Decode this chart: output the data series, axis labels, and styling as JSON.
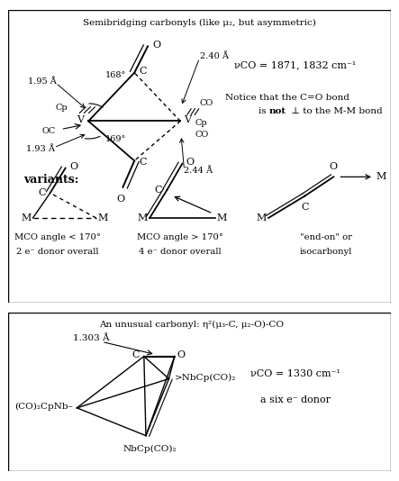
{
  "bg_color": "#ffffff",
  "title1": "Semibridging carbonyls (like μ₂, but asymmetric)",
  "title2": "An unusual carbonyl: η²(μ₃-C, μ₂-O)-CO",
  "vco1": "νCO = 1871, 1832 cm⁻¹",
  "notice1": "Notice that the C=O bond",
  "notice2": "is not ⊥ to the M-M bond",
  "vco2": "νCO = 1330 cm⁻¹",
  "donor2": "a six e⁻ donor",
  "variants_label": "variants:",
  "var1_line1": "MCO angle < 170°",
  "var1_line2": "2 e⁻ donor overall",
  "var2_line1": "MCO angle > 170°",
  "var2_line2": "4 e⁻ donor overall",
  "var3_line1": "\"end-on\" or",
  "var3_line2": "isocarbonyl"
}
